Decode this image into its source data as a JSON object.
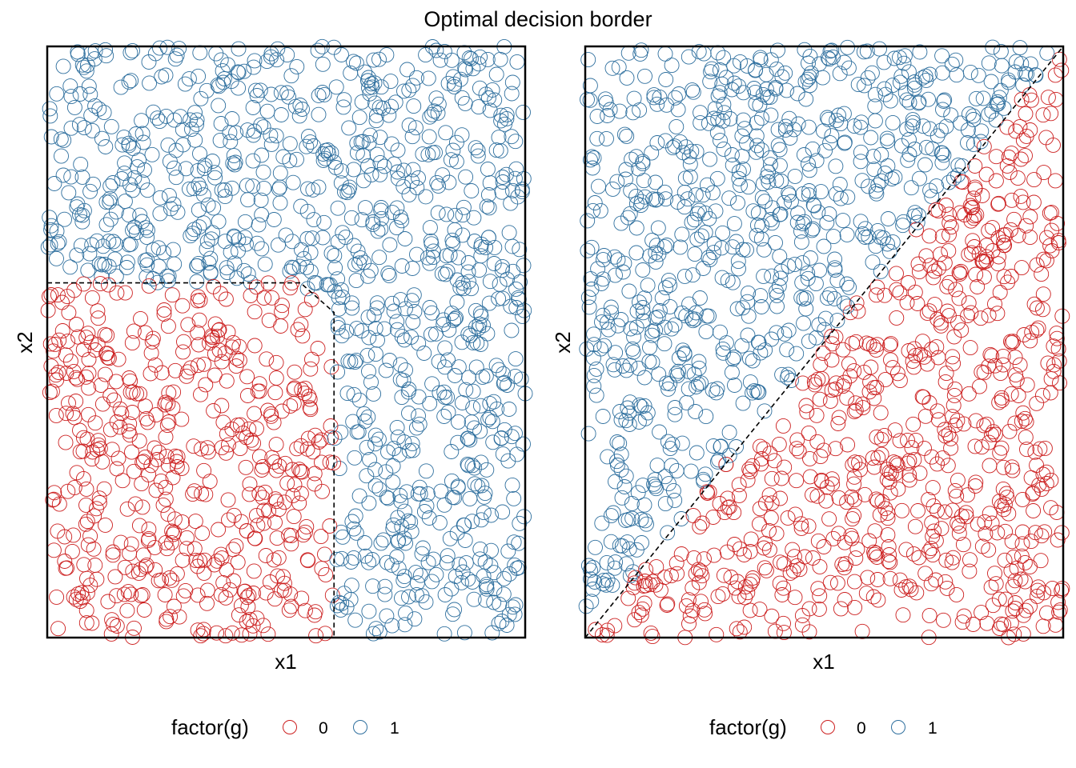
{
  "title": "Optimal decision border",
  "colors": {
    "class0": "#cc1f1f",
    "class1": "#2e6f9e",
    "frame": "#000000",
    "border": "#000000"
  },
  "legend": {
    "title": "factor(g)",
    "labels": [
      "0",
      "1"
    ]
  },
  "chart_data": [
    {
      "type": "scatter",
      "xlabel": "x1",
      "ylabel": "x2",
      "xlim": [
        0,
        1
      ],
      "ylim": [
        0,
        1
      ],
      "grid": false,
      "legend_position": "bottom",
      "series": [
        {
          "name": "0",
          "rule": "x1 < 0.6 and x2 < 0.6 (with corner cut from (0.53,0.6) to (0.6,0.55))",
          "approx_count": 500
        },
        {
          "name": "1",
          "rule": "otherwise",
          "approx_count": 1000
        }
      ],
      "decision_border": [
        [
          0.0,
          0.6
        ],
        [
          0.53,
          0.6
        ],
        [
          0.6,
          0.55
        ],
        [
          0.6,
          0.0
        ]
      ],
      "n_points": 1500
    },
    {
      "type": "scatter",
      "xlabel": "x1",
      "ylabel": "x2",
      "xlim": [
        0,
        1
      ],
      "ylim": [
        0,
        1
      ],
      "grid": false,
      "legend_position": "bottom",
      "series": [
        {
          "name": "0",
          "rule": "x2 < x1",
          "approx_count": 750
        },
        {
          "name": "1",
          "rule": "x2 >= x1",
          "approx_count": 750
        }
      ],
      "decision_border": [
        [
          0.0,
          0.0
        ],
        [
          1.0,
          1.0
        ]
      ],
      "n_points": 1500
    }
  ]
}
